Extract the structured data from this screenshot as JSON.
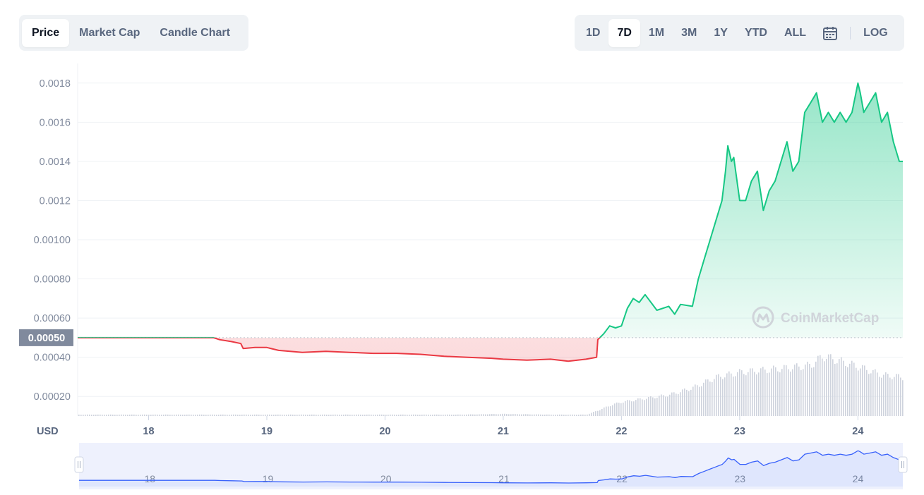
{
  "tabs": [
    {
      "label": "Price",
      "active": true
    },
    {
      "label": "Market Cap",
      "active": false
    },
    {
      "label": "Candle Chart",
      "active": false
    }
  ],
  "ranges": [
    {
      "label": "1D",
      "active": false
    },
    {
      "label": "7D",
      "active": true
    },
    {
      "label": "1M",
      "active": false
    },
    {
      "label": "3M",
      "active": false
    },
    {
      "label": "1Y",
      "active": false
    },
    {
      "label": "YTD",
      "active": false
    },
    {
      "label": "ALL",
      "active": false
    }
  ],
  "calendar_icon": "calendar-icon",
  "log_label": "LOG",
  "watermark": "CoinMarketCap",
  "colors": {
    "up": "#16c784",
    "down": "#ea3943",
    "navigator": "#3861fb"
  },
  "chart_data": {
    "type": "area",
    "currency_label": "USD",
    "y_ticks": [
      "0.0018",
      "0.0016",
      "0.0014",
      "0.0012",
      "0.00100",
      "0.00080",
      "0.00060",
      "0.00040",
      "0.00020"
    ],
    "y_tick_values": [
      0.0018,
      0.0016,
      0.0014,
      0.0012,
      0.001,
      0.0008,
      0.0006,
      0.0004,
      0.0002
    ],
    "ylim": [
      0.0001,
      0.0019
    ],
    "x_ticks": [
      "18",
      "19",
      "20",
      "21",
      "22",
      "23",
      "24"
    ],
    "x_tick_values": [
      18,
      19,
      20,
      21,
      22,
      23,
      24
    ],
    "xlim": [
      17.4,
      24.38
    ],
    "reference": {
      "value": 0.0005,
      "label": "0.00050"
    },
    "series": [
      {
        "x": [
          17.4,
          17.6,
          17.8,
          18.0,
          18.2,
          18.4,
          18.55,
          18.6,
          18.7,
          18.78,
          18.8,
          18.9,
          19.0,
          19.1,
          19.3,
          19.5,
          19.7,
          19.9,
          20.1,
          20.3,
          20.5,
          20.7,
          20.9,
          21.0,
          21.2,
          21.4,
          21.55,
          21.7,
          21.79,
          21.8,
          21.85,
          21.9,
          21.95,
          22.0,
          22.05,
          22.1,
          22.15,
          22.2,
          22.3,
          22.4,
          22.45,
          22.5,
          22.6,
          22.65,
          22.7,
          22.75,
          22.8,
          22.85,
          22.88,
          22.9,
          22.93,
          22.95,
          23.0,
          23.05,
          23.1,
          23.15,
          23.2,
          23.25,
          23.3,
          23.4,
          23.45,
          23.5,
          23.55,
          23.6,
          23.65,
          23.7,
          23.75,
          23.8,
          23.85,
          23.9,
          23.95,
          24.0,
          24.02,
          24.05,
          24.1,
          24.15,
          24.2,
          24.25,
          24.3,
          24.35,
          24.38
        ],
        "values": [
          0.0005,
          0.0005,
          0.0005,
          0.0005,
          0.0005,
          0.0005,
          0.0005,
          0.00049,
          0.00048,
          0.00047,
          0.000445,
          0.00045,
          0.00045,
          0.000435,
          0.000425,
          0.00043,
          0.000425,
          0.00042,
          0.00042,
          0.000415,
          0.000405,
          0.0004,
          0.000395,
          0.00039,
          0.000385,
          0.00039,
          0.00038,
          0.00039,
          0.0004,
          0.00049,
          0.00052,
          0.00056,
          0.00055,
          0.00056,
          0.00065,
          0.0007,
          0.00068,
          0.00072,
          0.00064,
          0.00066,
          0.00062,
          0.00067,
          0.00066,
          0.0008,
          0.0009,
          0.001,
          0.0011,
          0.0012,
          0.00135,
          0.00148,
          0.0014,
          0.00142,
          0.0012,
          0.0012,
          0.0013,
          0.00135,
          0.00115,
          0.00125,
          0.0013,
          0.0015,
          0.00135,
          0.0014,
          0.00165,
          0.0017,
          0.00175,
          0.0016,
          0.00165,
          0.0016,
          0.00165,
          0.0016,
          0.00165,
          0.0018,
          0.00175,
          0.00165,
          0.0017,
          0.00175,
          0.0016,
          0.00165,
          0.0015,
          0.0014,
          0.0014
        ]
      }
    ],
    "volume": {
      "x": [
        17.4,
        17.8,
        18.2,
        18.6,
        19.0,
        19.4,
        19.8,
        20.2,
        20.6,
        21.0,
        21.4,
        21.7,
        21.8,
        21.9,
        22.0,
        22.2,
        22.4,
        22.6,
        22.8,
        23.0,
        23.2,
        23.4,
        23.6,
        23.7,
        23.8,
        24.0,
        24.2,
        24.38
      ],
      "values": [
        2,
        2,
        2,
        2,
        2,
        2,
        2,
        2,
        2,
        3,
        2,
        2,
        8,
        15,
        20,
        25,
        30,
        40,
        55,
        62,
        65,
        68,
        72,
        85,
        80,
        70,
        58,
        55
      ]
    }
  }
}
